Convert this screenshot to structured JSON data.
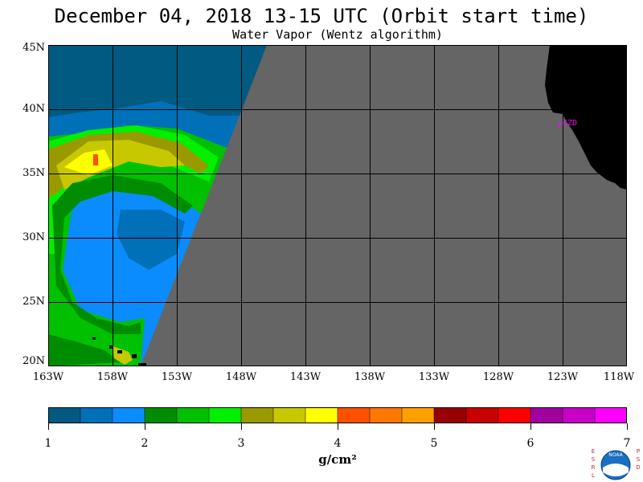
{
  "header": {
    "title": "December 04, 2018  13-15 UTC  (Orbit start time)",
    "subtitle": "Water Vapor (Wentz algorithm)"
  },
  "map": {
    "lat_labels": [
      "45N",
      "40N",
      "35N",
      "30N",
      "25N",
      "20N"
    ],
    "lon_labels": [
      "163W",
      "158W",
      "153W",
      "148W",
      "143W",
      "138W",
      "133W",
      "128W",
      "123W",
      "118W"
    ],
    "station_label": "CZD",
    "colors": {
      "no_data": "#656565",
      "land": "#000000",
      "grid": "#000000",
      "station": "#ff00ff"
    }
  },
  "colorbar": {
    "tick_labels": [
      "1",
      "2",
      "3",
      "4",
      "5",
      "6",
      "7"
    ],
    "unit_label": "g/cm²",
    "colors": [
      "#005a82",
      "#0070b8",
      "#0a8cff",
      "#008c00",
      "#00c000",
      "#00f000",
      "#9a9a00",
      "#c8c800",
      "#ffff00",
      "#ff5000",
      "#ff7800",
      "#ffa000",
      "#960000",
      "#c80000",
      "#ff0000",
      "#a000a0",
      "#c800c8",
      "#ff00ff"
    ]
  },
  "logo": {
    "left_letters": "ESRL",
    "right_letters": "PSD",
    "center_text": "NOAA"
  }
}
